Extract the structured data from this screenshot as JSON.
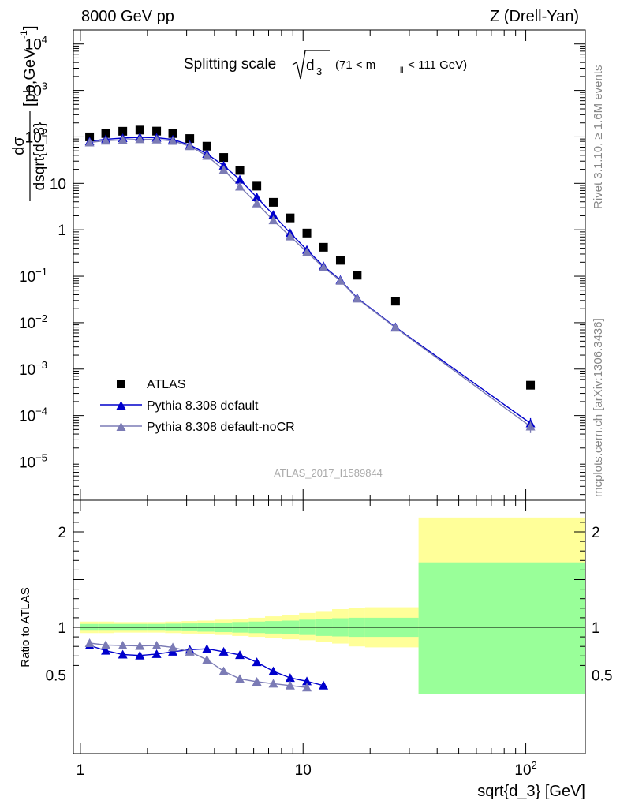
{
  "header": {
    "left": "8000 GeV pp",
    "right": "Z (Drell-Yan)"
  },
  "side_text": {
    "rivet": "Rivet 3.1.10, ≥ 1.6M events",
    "mcplots": "mcplots.cern.ch [arXiv:1306.3436]"
  },
  "chart_data": [
    {
      "type": "scatter",
      "title": "Splitting scale √d3 (71 < m_ll < 111 GeV)",
      "title_parts": {
        "main": "Splitting scale",
        "sub": "3",
        "range": "(71 < m",
        "range_sub": "ll",
        "range_end": " < 111 GeV)"
      },
      "ylabel_num": "dσ",
      "ylabel_den": "dsqrt{d_3}",
      "ylabel_unit": "[pb,GeV",
      "ylabel_unit_sup": "-1",
      "ylabel_unit_end": "]",
      "watermark": "ATLAS_2017_I1589844",
      "xscale": "log",
      "yscale": "log",
      "xlim": [
        0.93,
        185
      ],
      "ylim": [
        1.5e-06,
        20000
      ],
      "yticks": [
        {
          "v": 10000,
          "base": "10",
          "exp": "4"
        },
        {
          "v": 1000,
          "base": "10",
          "exp": "3"
        },
        {
          "v": 100,
          "base": "10",
          "exp": "2"
        },
        {
          "v": 10,
          "base": "10",
          "exp": ""
        },
        {
          "v": 1,
          "base": "1",
          "exp": ""
        },
        {
          "v": 0.1,
          "base": "10",
          "exp": "−1"
        },
        {
          "v": 0.01,
          "base": "10",
          "exp": "−2"
        },
        {
          "v": 0.001,
          "base": "10",
          "exp": "−3"
        },
        {
          "v": 0.0001,
          "base": "10",
          "exp": "−4"
        },
        {
          "v": 1e-05,
          "base": "10",
          "exp": "−5"
        }
      ],
      "legend_position": "bottom-left",
      "series": [
        {
          "name": "ATLAS",
          "marker": "square",
          "color": "#000000",
          "x": [
            1.1,
            1.3,
            1.55,
            1.85,
            2.2,
            2.6,
            3.1,
            3.7,
            4.4,
            5.2,
            6.2,
            7.35,
            8.75,
            10.4,
            12.35,
            14.7,
            17.5,
            26,
            105
          ],
          "y": [
            100,
            118,
            132,
            140,
            133,
            118,
            92,
            63,
            36,
            19,
            8.7,
            3.9,
            1.8,
            0.85,
            0.42,
            0.22,
            0.105,
            0.029,
            0.00045
          ]
        },
        {
          "name": "Pythia 8.308 default",
          "marker": "triangle",
          "color": "#0000cc",
          "x": [
            1.1,
            1.3,
            1.55,
            1.85,
            2.2,
            2.6,
            3.1,
            3.7,
            4.4,
            5.2,
            6.2,
            7.35,
            8.75,
            10.4,
            12.35,
            14.7,
            17.5,
            26,
            105
          ],
          "y": [
            80,
            89,
            94,
            98,
            96,
            88,
            67,
            43,
            24,
            12,
            5.0,
            2.1,
            0.85,
            0.37,
            0.165,
            0.083,
            0.034,
            0.008,
            6.8e-05
          ]
        },
        {
          "name": "Pythia 8.308 default-noCR",
          "marker": "triangle",
          "color": "#7b7bb5",
          "x": [
            1.1,
            1.3,
            1.55,
            1.85,
            2.2,
            2.6,
            3.1,
            3.7,
            4.4,
            5.2,
            6.2,
            7.35,
            8.75,
            10.4,
            12.35,
            14.7,
            17.5,
            26,
            105
          ],
          "y": [
            76,
            83,
            86,
            89,
            88,
            82,
            63,
            39,
            19.5,
            8.5,
            3.7,
            1.6,
            0.72,
            0.33,
            0.155,
            0.08,
            0.033,
            0.0078,
            5.8e-05
          ]
        }
      ]
    },
    {
      "type": "line",
      "ylabel": "Ratio to ATLAS",
      "xlabel": "sqrt{d_3} [GeV]",
      "xscale": "log",
      "ylim": [
        0.42,
        2.3
      ],
      "yticks": [
        {
          "v": 2,
          "label": "2"
        },
        {
          "v": 1,
          "label": "1"
        },
        {
          "v": 0.5,
          "label": "0.5"
        }
      ],
      "xticks": [
        {
          "v": 1,
          "base": "1",
          "exp": ""
        },
        {
          "v": 10,
          "base": "10",
          "exp": ""
        },
        {
          "v": 100,
          "base": "10",
          "exp": "2"
        }
      ],
      "bands": {
        "bin_edges": [
          1.0,
          1.2,
          1.42,
          1.68,
          2.0,
          2.4,
          2.85,
          3.35,
          4.0,
          4.8,
          5.7,
          6.75,
          8.05,
          9.6,
          11.35,
          13.5,
          16.0,
          19.0,
          33.0,
          185
        ],
        "yellow_lo": [
          0.94,
          0.94,
          0.945,
          0.945,
          0.945,
          0.94,
          0.935,
          0.93,
          0.92,
          0.91,
          0.9,
          0.885,
          0.875,
          0.865,
          0.85,
          0.83,
          0.8,
          0.79,
          0.0
        ],
        "yellow_hi": [
          1.06,
          1.06,
          1.055,
          1.055,
          1.055,
          1.06,
          1.065,
          1.07,
          1.08,
          1.09,
          1.1,
          1.115,
          1.13,
          1.15,
          1.17,
          1.19,
          1.2,
          1.21,
          2.15
        ],
        "green_lo": [
          0.965,
          0.965,
          0.965,
          0.965,
          0.965,
          0.962,
          0.96,
          0.955,
          0.95,
          0.945,
          0.94,
          0.935,
          0.93,
          0.92,
          0.91,
          0.905,
          0.9,
          0.9,
          0.0
        ],
        "green_hi": [
          1.035,
          1.035,
          1.035,
          1.035,
          1.035,
          1.038,
          1.04,
          1.045,
          1.05,
          1.055,
          1.06,
          1.065,
          1.07,
          1.08,
          1.09,
          1.095,
          1.1,
          1.1,
          1.68
        ]
      },
      "series": [
        {
          "name": "Pythia 8.308 default",
          "color": "#0000cc",
          "x": [
            1.1,
            1.3,
            1.55,
            1.85,
            2.2,
            2.6,
            3.1,
            3.7,
            4.4,
            5.2,
            6.2,
            7.35,
            8.75,
            10.4,
            12.35
          ],
          "y": [
            0.81,
            0.755,
            0.715,
            0.705,
            0.72,
            0.745,
            0.765,
            0.775,
            0.745,
            0.71,
            0.635,
            0.54,
            0.47,
            0.435,
            0.39
          ]
        },
        {
          "name": "Pythia 8.308 default-noCR",
          "color": "#7b7bb5",
          "x": [
            1.1,
            1.3,
            1.55,
            1.85,
            2.2,
            2.6,
            3.1,
            3.7,
            4.4,
            5.2,
            6.2,
            7.35,
            8.75,
            10.4
          ],
          "y": [
            0.835,
            0.815,
            0.81,
            0.805,
            0.81,
            0.79,
            0.745,
            0.66,
            0.54,
            0.46,
            0.43,
            0.41,
            0.39,
            0.37
          ]
        }
      ]
    }
  ]
}
